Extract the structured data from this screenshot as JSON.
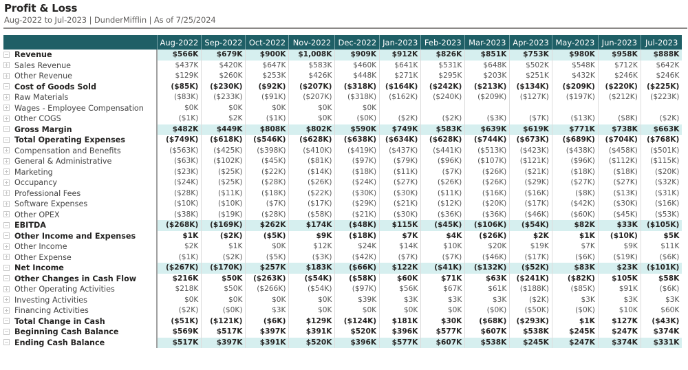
{
  "header": {
    "title": "Profit & Loss",
    "subtitle": "Aug-2022 to Jul-2023 | DunderMifflin | As of 7/25/2024"
  },
  "colors": {
    "header_bg": "#1f5f66",
    "highlight_row": "#d6efef"
  },
  "columns": [
    "Aug-2022",
    "Sep-2022",
    "Oct-2022",
    "Nov-2022",
    "Dec-2022",
    "Jan-2023",
    "Feb-2023",
    "Mar-2023",
    "Apr-2023",
    "May-2023",
    "Jun-2023",
    "Jul-2023"
  ],
  "rows": [
    {
      "label": "Revenue",
      "level": 0,
      "highlight": true,
      "values": [
        "$566K",
        "$679K",
        "$900K",
        "$1,008K",
        "$909K",
        "$912K",
        "$826K",
        "$851K",
        "$753K",
        "$980K",
        "$958K",
        "$888K"
      ]
    },
    {
      "label": "Sales Revenue",
      "level": 1,
      "highlight": false,
      "values": [
        "$437K",
        "$420K",
        "$647K",
        "$583K",
        "$460K",
        "$641K",
        "$531K",
        "$648K",
        "$502K",
        "$548K",
        "$712K",
        "$642K"
      ]
    },
    {
      "label": "Other Revenue",
      "level": 1,
      "highlight": false,
      "values": [
        "$129K",
        "$260K",
        "$253K",
        "$426K",
        "$448K",
        "$271K",
        "$295K",
        "$203K",
        "$251K",
        "$432K",
        "$246K",
        "$246K"
      ]
    },
    {
      "label": "Cost of Goods Sold",
      "level": 0,
      "highlight": false,
      "values": [
        "($85K)",
        "($230K)",
        "($92K)",
        "($207K)",
        "($318K)",
        "($164K)",
        "($242K)",
        "($213K)",
        "($134K)",
        "($209K)",
        "($220K)",
        "($225K)"
      ]
    },
    {
      "label": "Raw Materials",
      "level": 1,
      "highlight": false,
      "values": [
        "($83K)",
        "($233K)",
        "($91K)",
        "($207K)",
        "($318K)",
        "($162K)",
        "($240K)",
        "($209K)",
        "($127K)",
        "($197K)",
        "($212K)",
        "($223K)"
      ]
    },
    {
      "label": "Wages - Employee Compensation",
      "level": 1,
      "highlight": false,
      "values": [
        "$0K",
        "$0K",
        "$0K",
        "$0K",
        "$0K",
        "",
        "",
        "",
        "",
        "",
        "",
        ""
      ]
    },
    {
      "label": "Other COGS",
      "level": 1,
      "highlight": false,
      "values": [
        "($1K)",
        "$2K",
        "($1K)",
        "$0K",
        "($0K)",
        "($2K)",
        "($2K)",
        "($3K)",
        "($7K)",
        "($13K)",
        "($8K)",
        "($2K)"
      ]
    },
    {
      "label": "Gross Margin",
      "level": 0,
      "highlight": true,
      "values": [
        "$482K",
        "$449K",
        "$808K",
        "$802K",
        "$590K",
        "$749K",
        "$583K",
        "$639K",
        "$619K",
        "$771K",
        "$738K",
        "$663K"
      ]
    },
    {
      "label": "Total Operating Expenses",
      "level": 0,
      "highlight": false,
      "values": [
        "($749K)",
        "($618K)",
        "($546K)",
        "($628K)",
        "($638K)",
        "($634K)",
        "($628K)",
        "($744K)",
        "($673K)",
        "($689K)",
        "($704K)",
        "($768K)"
      ]
    },
    {
      "label": "Compensation and Benefits",
      "level": 1,
      "highlight": false,
      "values": [
        "($563K)",
        "($425K)",
        "($398K)",
        "($410K)",
        "($419K)",
        "($437K)",
        "($441K)",
        "($513K)",
        "($423K)",
        "($438K)",
        "($458K)",
        "($501K)"
      ]
    },
    {
      "label": "General & Administrative",
      "level": 1,
      "highlight": false,
      "values": [
        "($63K)",
        "($102K)",
        "($45K)",
        "($81K)",
        "($97K)",
        "($79K)",
        "($96K)",
        "($107K)",
        "($121K)",
        "($96K)",
        "($112K)",
        "($115K)"
      ]
    },
    {
      "label": "Marketing",
      "level": 1,
      "highlight": false,
      "values": [
        "($23K)",
        "($25K)",
        "($22K)",
        "($14K)",
        "($18K)",
        "($11K)",
        "($7K)",
        "($26K)",
        "($21K)",
        "($18K)",
        "($18K)",
        "($20K)"
      ]
    },
    {
      "label": "Occupancy",
      "level": 1,
      "highlight": false,
      "values": [
        "($24K)",
        "($25K)",
        "($28K)",
        "($26K)",
        "($24K)",
        "($27K)",
        "($26K)",
        "($26K)",
        "($29K)",
        "($27K)",
        "($27K)",
        "($32K)"
      ]
    },
    {
      "label": "Professional Fees",
      "level": 1,
      "highlight": false,
      "values": [
        "($28K)",
        "($11K)",
        "($18K)",
        "($22K)",
        "($30K)",
        "($30K)",
        "($11K)",
        "($16K)",
        "($16K)",
        "($8K)",
        "($13K)",
        "($31K)"
      ]
    },
    {
      "label": "Software Expenses",
      "level": 1,
      "highlight": false,
      "values": [
        "($10K)",
        "($10K)",
        "($7K)",
        "($17K)",
        "($29K)",
        "($21K)",
        "($12K)",
        "($20K)",
        "($17K)",
        "($42K)",
        "($30K)",
        "($16K)"
      ]
    },
    {
      "label": "Other OPEX",
      "level": 1,
      "highlight": false,
      "values": [
        "($38K)",
        "($19K)",
        "($28K)",
        "($58K)",
        "($21K)",
        "($30K)",
        "($36K)",
        "($36K)",
        "($46K)",
        "($60K)",
        "($45K)",
        "($53K)"
      ]
    },
    {
      "label": "EBITDA",
      "level": 0,
      "highlight": true,
      "values": [
        "($268K)",
        "($169K)",
        "$262K",
        "$174K",
        "($48K)",
        "$115K",
        "($45K)",
        "($106K)",
        "($54K)",
        "$82K",
        "$33K",
        "($105K)"
      ]
    },
    {
      "label": "Other Income and Expenses",
      "level": 0,
      "highlight": false,
      "values": [
        "$1K",
        "($2K)",
        "($5K)",
        "$9K",
        "($18K)",
        "$7K",
        "$4K",
        "($26K)",
        "$2K",
        "$1K",
        "($10K)",
        "$5K"
      ]
    },
    {
      "label": "Other Income",
      "level": 1,
      "highlight": false,
      "values": [
        "$2K",
        "$1K",
        "$0K",
        "$12K",
        "$24K",
        "$14K",
        "$10K",
        "$20K",
        "$19K",
        "$7K",
        "$9K",
        "$11K"
      ]
    },
    {
      "label": "Other Expense",
      "level": 1,
      "highlight": false,
      "values": [
        "($1K)",
        "($2K)",
        "($5K)",
        "($3K)",
        "($42K)",
        "($7K)",
        "($7K)",
        "($46K)",
        "($17K)",
        "($6K)",
        "($19K)",
        "($6K)"
      ]
    },
    {
      "label": "Net Income",
      "level": 0,
      "highlight": true,
      "values": [
        "($267K)",
        "($170K)",
        "$257K",
        "$183K",
        "($66K)",
        "$122K",
        "($41K)",
        "($132K)",
        "($52K)",
        "$83K",
        "$23K",
        "($101K)"
      ]
    },
    {
      "label": "Other Changes in Cash Flow",
      "level": 0,
      "highlight": false,
      "values": [
        "$216K",
        "$50K",
        "($263K)",
        "($54K)",
        "($58K)",
        "$60K",
        "$71K",
        "$63K",
        "($241K)",
        "($82K)",
        "$105K",
        "$58K"
      ]
    },
    {
      "label": "Other Operating Activities",
      "level": 1,
      "highlight": false,
      "values": [
        "$218K",
        "$50K",
        "($266K)",
        "($54K)",
        "($97K)",
        "$56K",
        "$67K",
        "$61K",
        "($188K)",
        "($85K)",
        "$91K",
        "($6K)"
      ]
    },
    {
      "label": "Investing Activities",
      "level": 1,
      "highlight": false,
      "values": [
        "$0K",
        "$0K",
        "$0K",
        "$0K",
        "$39K",
        "$3K",
        "$3K",
        "$3K",
        "($2K)",
        "$3K",
        "$3K",
        "$3K"
      ]
    },
    {
      "label": "Financing Activities",
      "level": 1,
      "highlight": false,
      "values": [
        "($2K)",
        "($0K)",
        "$3K",
        "$0K",
        "$0K",
        "$0K",
        "$0K",
        "($0K)",
        "($50K)",
        "($0K)",
        "$10K",
        "$60K"
      ]
    },
    {
      "label": "Total Change in Cash",
      "level": 0,
      "highlight": false,
      "values": [
        "($51K)",
        "($121K)",
        "($6K)",
        "$129K",
        "($124K)",
        "$181K",
        "$30K",
        "($68K)",
        "($293K)",
        "$1K",
        "$127K",
        "($43K)"
      ]
    },
    {
      "label": "Beginning Cash Balance",
      "level": 0,
      "highlight": false,
      "values": [
        "$569K",
        "$517K",
        "$397K",
        "$391K",
        "$520K",
        "$396K",
        "$577K",
        "$607K",
        "$538K",
        "$245K",
        "$247K",
        "$374K"
      ]
    },
    {
      "label": "Ending Cash Balance",
      "level": 0,
      "highlight": true,
      "values": [
        "$517K",
        "$397K",
        "$391K",
        "$520K",
        "$396K",
        "$577K",
        "$607K",
        "$538K",
        "$245K",
        "$247K",
        "$374K",
        "$331K"
      ]
    }
  ]
}
